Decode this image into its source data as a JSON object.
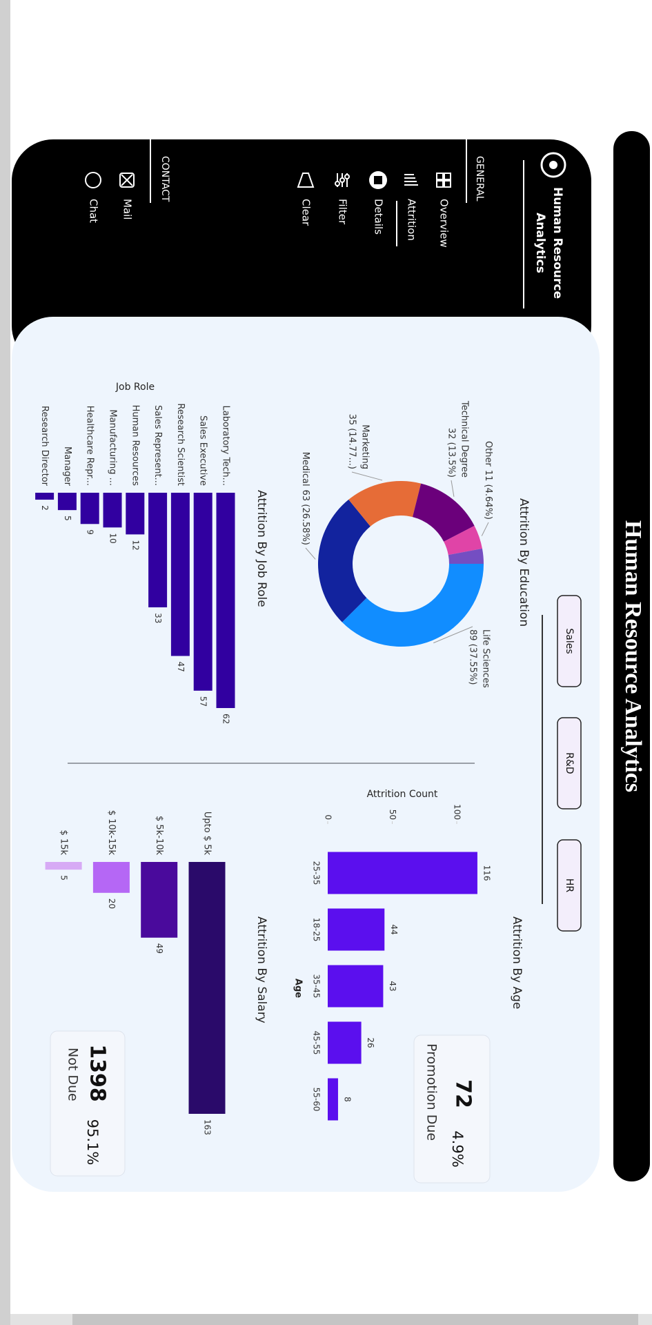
{
  "header": {
    "title": "Human Resource Analytics"
  },
  "sidebar": {
    "brand": [
      "Human Resource",
      "Analytics"
    ],
    "general": "GENERAL",
    "nav": [
      "Overview",
      "Attrition",
      "Details",
      "Filter",
      "Clear"
    ],
    "contact": "CONTACT",
    "contact_items": [
      "Mail",
      "Chat"
    ]
  },
  "slicer": [
    "Sales",
    "R&D",
    "HR"
  ],
  "kpis": [
    {
      "value": 72,
      "percent": "4.9%",
      "label": "Promotion Due"
    },
    {
      "value": 1398,
      "percent": "95.1%",
      "label": "Not Due"
    }
  ],
  "chart_data": [
    {
      "type": "donut",
      "title": "Attrition By Education",
      "categories": [
        "Life Sciences",
        "Medical",
        "Marketing",
        "Technical Degree",
        "Other",
        null
      ],
      "values": [
        89,
        63,
        35,
        32,
        11,
        7
      ],
      "value_labels": [
        "89 (37.55%)",
        "63 (26.58%)",
        "35 (14.77...)",
        "32 (13.5%)",
        "11 (4.64%)",
        null
      ],
      "colors": [
        "#118dff",
        "#12239e",
        "#e66c37",
        "#6b007b",
        "#e044a7",
        "#744ec2"
      ]
    },
    {
      "type": "hbar",
      "title": "Attrition By Job Role",
      "y_label": "Job Role",
      "categories": [
        "Laboratory Tech...",
        "Sales Executive",
        "Research Scientist",
        "Sales Represent...",
        "Human Resources",
        "Manufacturing ...",
        "Healthcare Repr...",
        "Manager",
        "Research Director"
      ],
      "values": [
        62,
        57,
        47,
        33,
        12,
        10,
        9,
        5,
        2
      ],
      "color": "#3100a0"
    },
    {
      "type": "bar",
      "title": "Attrition By Age",
      "x_label": "Age",
      "y_label": "Attrition Count",
      "categories": [
        "25-35",
        "18-25",
        "35-45",
        "45-55",
        "55-60"
      ],
      "values": [
        116,
        44,
        43,
        26,
        8
      ],
      "color": "#5b0fee",
      "ylim": [
        0,
        120
      ],
      "yticks": [
        0,
        50,
        100
      ]
    },
    {
      "type": "hbar",
      "title": "Attrition By Salary",
      "categories": [
        "Upto $ 5k",
        "$ 5k-10k",
        "$ 10k-15k",
        "$ 15k"
      ],
      "values": [
        163,
        49,
        20,
        5
      ],
      "colors": [
        "#2a0a6a",
        "#4a0a9c",
        "#b567f5",
        "#d7aaf5"
      ]
    }
  ]
}
